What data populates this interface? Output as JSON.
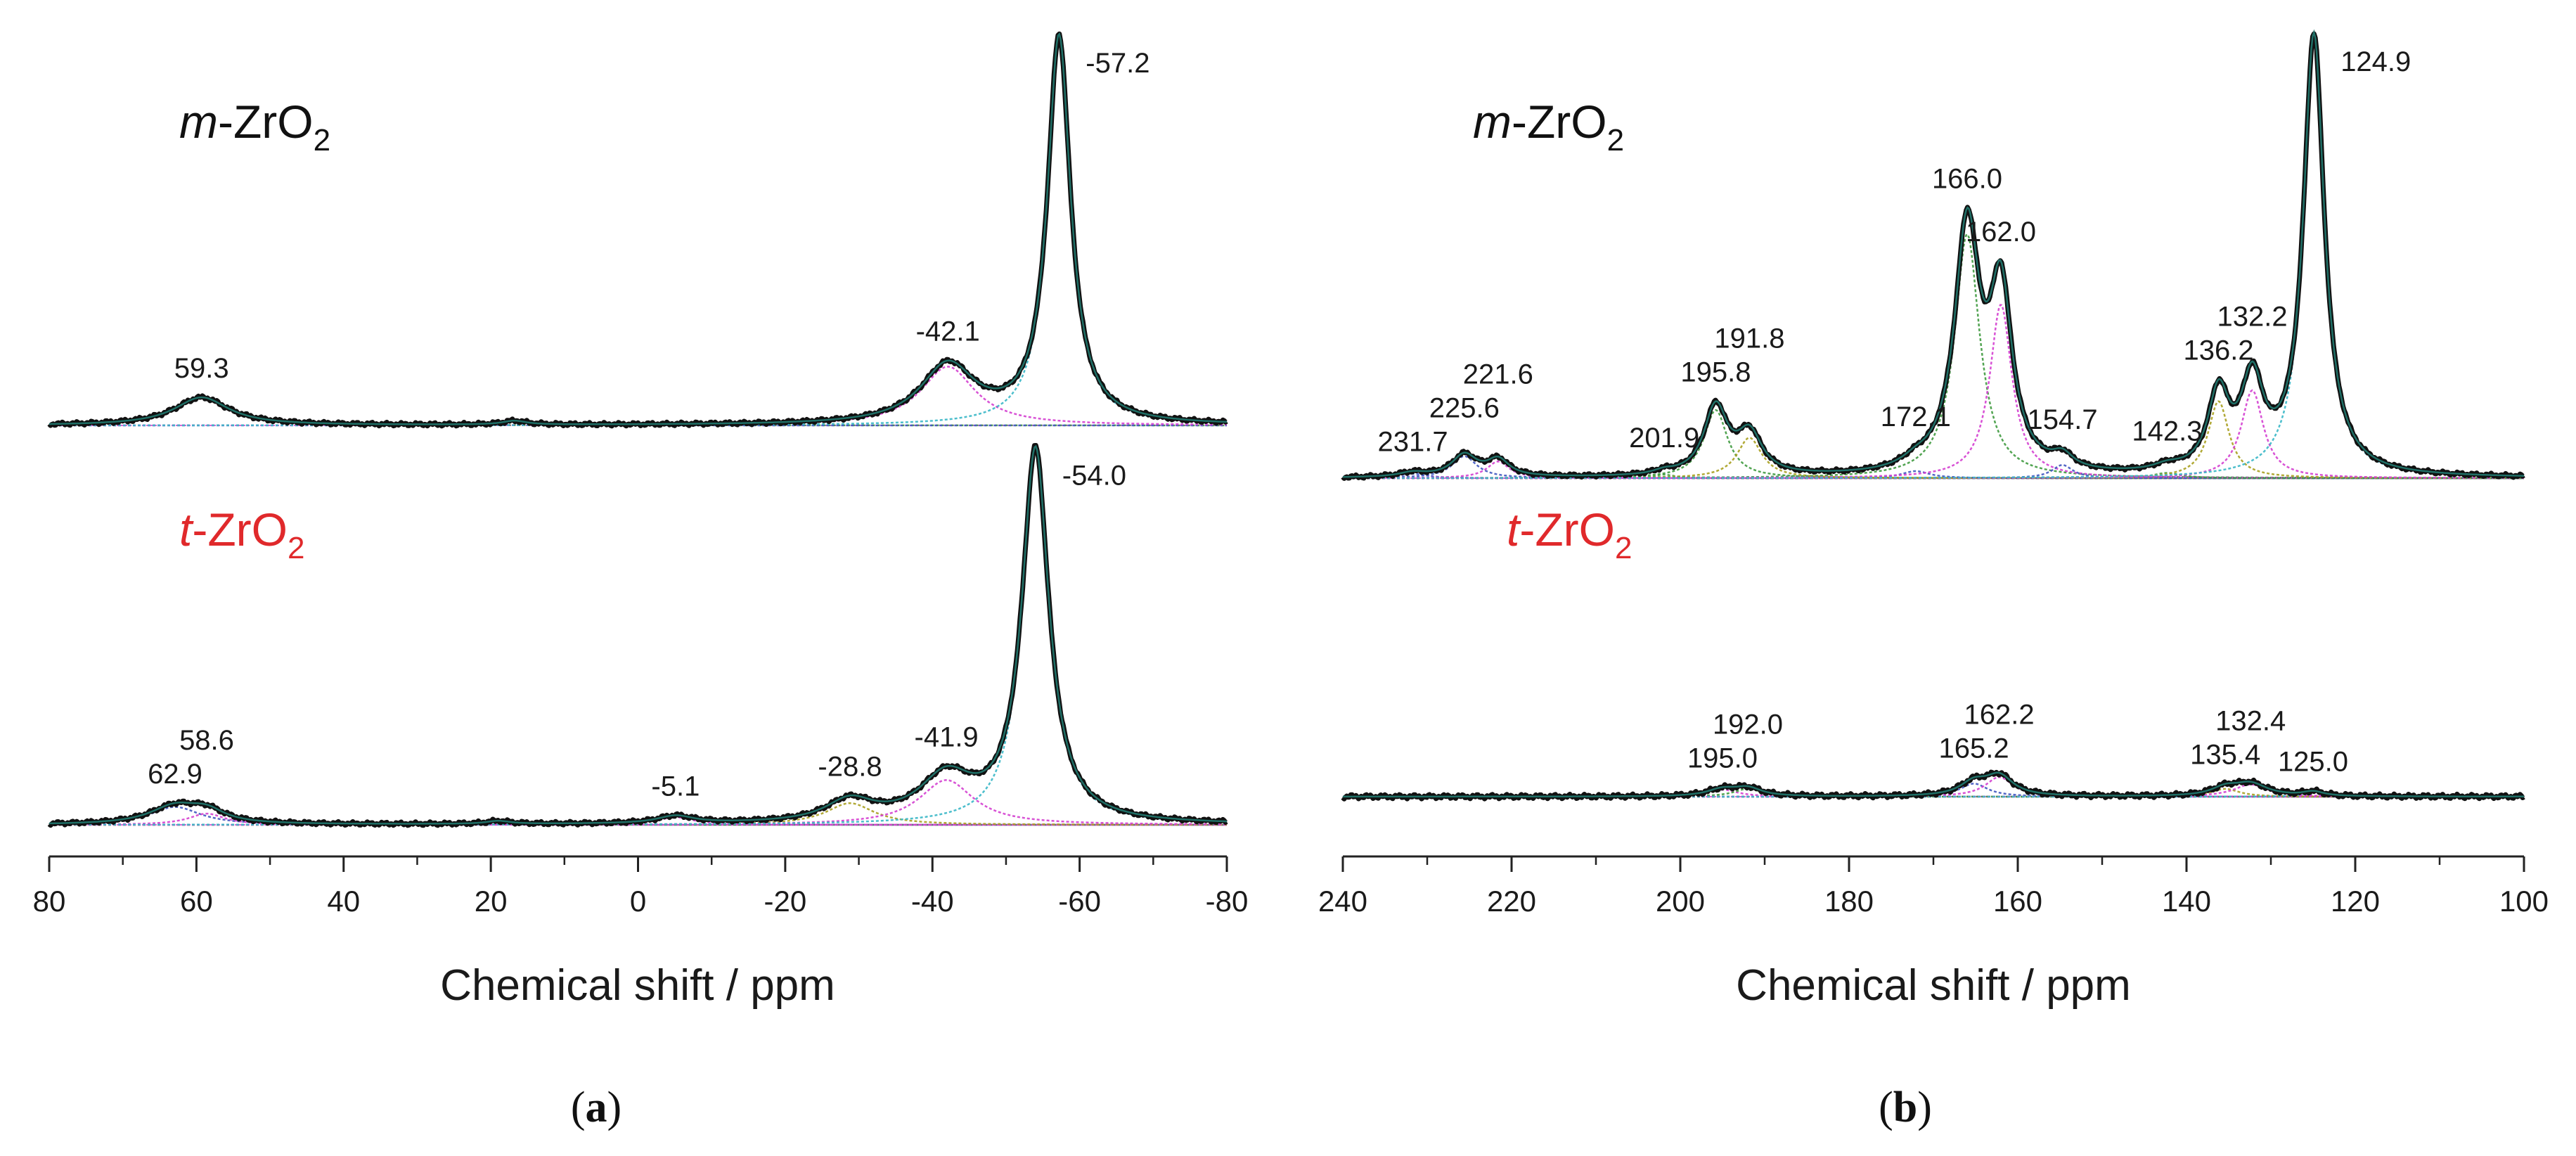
{
  "colors": {
    "experimental": "#111111",
    "fit_total": "#1f6f66",
    "fit_magenta": "#d43fd0",
    "fit_green": "#3f9a3f",
    "fit_olive": "#a8a020",
    "fit_blue": "#4057c0",
    "fit_cyan": "#39b7c7",
    "m_label": "#111111",
    "t_label": "#e0292b"
  },
  "chart_data": [
    {
      "id": "a",
      "type": "line",
      "panel_label_open": "(",
      "panel_label_letter": "a",
      "panel_label_close": ")",
      "xlabel": "Chemical shift / ppm",
      "xlim": [
        80,
        -80
      ],
      "xticks": [
        80,
        60,
        40,
        20,
        0,
        -20,
        -40,
        -60,
        -80
      ],
      "x_reversed": true,
      "grid": false,
      "spectra": [
        {
          "sample_prefix": "m",
          "sample_main": "-ZrO",
          "sample_sub": "2",
          "color_key": "m_label",
          "peaks": [
            {
              "center": 59.3,
              "height": 0.072,
              "width": 4.5,
              "color": "fit_green"
            },
            {
              "center": 16.8,
              "height": 0.01,
              "width": 2.0,
              "color": "fit_blue"
            },
            {
              "center": -42.1,
              "height": 0.152,
              "width": 4.5,
              "color": "fit_magenta"
            },
            {
              "center": -57.2,
              "height": 1.0,
              "width": 1.9,
              "color": "fit_cyan"
            }
          ],
          "labels": [
            {
              "x": 59.3,
              "text": "59.3"
            },
            {
              "x": -42.1,
              "text": "-42.1"
            },
            {
              "x": -57.2,
              "text": "-57.2"
            }
          ]
        },
        {
          "sample_prefix": "t",
          "sample_main": "-ZrO",
          "sample_sub": "2",
          "color_key": "t_label",
          "peaks": [
            {
              "center": 62.9,
              "height": 0.048,
              "width": 4.2,
              "color": "fit_blue"
            },
            {
              "center": 58.6,
              "height": 0.03,
              "width": 3.0,
              "color": "fit_magenta"
            },
            {
              "center": 19.0,
              "height": 0.008,
              "width": 2.0,
              "color": "fit_green"
            },
            {
              "center": -5.1,
              "height": 0.02,
              "width": 3.0,
              "color": "fit_magenta"
            },
            {
              "center": -28.8,
              "height": 0.058,
              "width": 4.0,
              "color": "fit_olive"
            },
            {
              "center": -41.9,
              "height": 0.12,
              "width": 4.5,
              "color": "fit_magenta"
            },
            {
              "center": -54.0,
              "height": 1.0,
              "width": 2.2,
              "color": "fit_cyan"
            }
          ],
          "labels": [
            {
              "x": 62.9,
              "text": "62.9"
            },
            {
              "x": 58.6,
              "text": "58.6"
            },
            {
              "x": -5.1,
              "text": "-5.1"
            },
            {
              "x": -28.8,
              "text": "-28.8"
            },
            {
              "x": -41.9,
              "text": "-41.9"
            },
            {
              "x": -54.0,
              "text": "-54.0"
            }
          ]
        }
      ]
    },
    {
      "id": "b",
      "type": "line",
      "panel_label_open": "(",
      "panel_label_letter": "b",
      "panel_label_close": ")",
      "xlabel": "Chemical shift / ppm",
      "xlim": [
        240,
        100
      ],
      "xticks": [
        240,
        220,
        200,
        180,
        160,
        140,
        120,
        100
      ],
      "x_reversed": true,
      "grid": false,
      "spectra": [
        {
          "sample_prefix": "m",
          "sample_main": "-ZrO",
          "sample_sub": "2",
          "color_key": "m_label",
          "peaks": [
            {
              "center": 231.7,
              "height": 0.01,
              "width": 2.0,
              "color": "fit_blue"
            },
            {
              "center": 225.6,
              "height": 0.05,
              "width": 1.8,
              "color": "fit_blue"
            },
            {
              "center": 221.6,
              "height": 0.038,
              "width": 1.6,
              "color": "fit_magenta"
            },
            {
              "center": 201.9,
              "height": 0.008,
              "width": 1.5,
              "color": "fit_green"
            },
            {
              "center": 195.8,
              "height": 0.155,
              "width": 1.7,
              "color": "fit_green"
            },
            {
              "center": 191.8,
              "height": 0.092,
              "width": 1.8,
              "color": "fit_olive"
            },
            {
              "center": 172.1,
              "height": 0.016,
              "width": 2.0,
              "color": "fit_blue"
            },
            {
              "center": 166.0,
              "height": 0.555,
              "width": 1.8,
              "color": "fit_green"
            },
            {
              "center": 162.0,
              "height": 0.395,
              "width": 1.6,
              "color": "fit_magenta"
            },
            {
              "center": 154.7,
              "height": 0.03,
              "width": 1.5,
              "color": "fit_blue"
            },
            {
              "center": 142.3,
              "height": 0.012,
              "width": 2.0,
              "color": "fit_green"
            },
            {
              "center": 136.2,
              "height": 0.175,
              "width": 1.5,
              "color": "fit_olive"
            },
            {
              "center": 132.2,
              "height": 0.2,
              "width": 1.6,
              "color": "fit_magenta"
            },
            {
              "center": 124.9,
              "height": 1.0,
              "width": 1.5,
              "color": "fit_cyan"
            }
          ],
          "labels": [
            {
              "x": 231.7,
              "text": "231.7"
            },
            {
              "x": 225.6,
              "text": "225.6"
            },
            {
              "x": 221.6,
              "text": "221.6"
            },
            {
              "x": 201.9,
              "text": "201.9"
            },
            {
              "x": 195.8,
              "text": "195.8"
            },
            {
              "x": 191.8,
              "text": "191.8"
            },
            {
              "x": 172.1,
              "text": "172.1"
            },
            {
              "x": 166.0,
              "text": "166.0"
            },
            {
              "x": 162.0,
              "text": "162.0"
            },
            {
              "x": 154.7,
              "text": "154.7"
            },
            {
              "x": 142.3,
              "text": "142.3"
            },
            {
              "x": 136.2,
              "text": "136.2"
            },
            {
              "x": 132.2,
              "text": "132.2"
            },
            {
              "x": 124.9,
              "text": "124.9"
            }
          ]
        },
        {
          "sample_prefix": "t",
          "sample_main": "-ZrO",
          "sample_sub": "2",
          "color_key": "t_label",
          "peaks": [
            {
              "center": 195.0,
              "height": 0.016,
              "width": 2.2,
              "color": "fit_magenta"
            },
            {
              "center": 192.0,
              "height": 0.018,
              "width": 2.0,
              "color": "fit_green"
            },
            {
              "center": 165.2,
              "height": 0.03,
              "width": 2.0,
              "color": "fit_blue"
            },
            {
              "center": 162.2,
              "height": 0.045,
              "width": 2.0,
              "color": "fit_magenta"
            },
            {
              "center": 135.4,
              "height": 0.018,
              "width": 2.0,
              "color": "fit_olive"
            },
            {
              "center": 132.4,
              "height": 0.028,
              "width": 2.4,
              "color": "fit_magenta"
            },
            {
              "center": 125.0,
              "height": 0.01,
              "width": 1.5,
              "color": "fit_cyan"
            }
          ],
          "labels": [
            {
              "x": 195.0,
              "text": "195.0"
            },
            {
              "x": 192.0,
              "text": "192.0"
            },
            {
              "x": 165.2,
              "text": "165.2"
            },
            {
              "x": 162.2,
              "text": "162.2"
            },
            {
              "x": 135.4,
              "text": "135.4"
            },
            {
              "x": 132.4,
              "text": "132.4"
            },
            {
              "x": 125.0,
              "text": "125.0"
            }
          ]
        }
      ]
    }
  ]
}
